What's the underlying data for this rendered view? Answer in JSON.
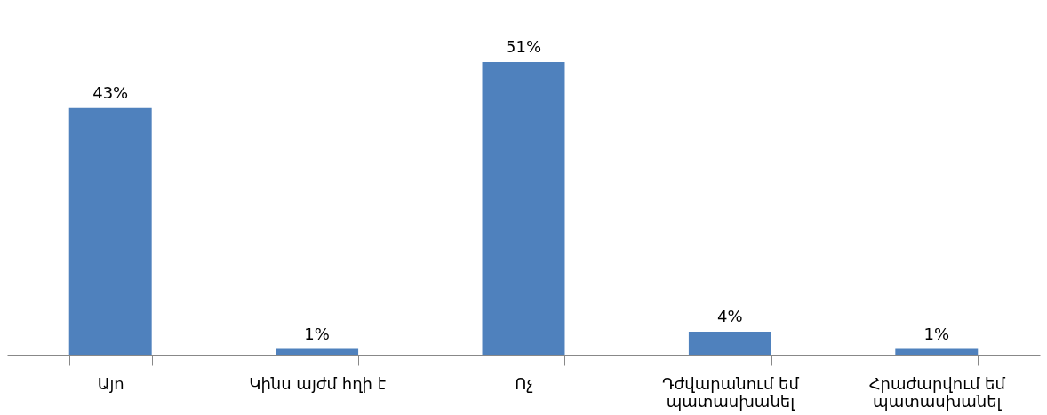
{
  "chart_data": {
    "type": "bar",
    "categories": [
      "Այո",
      "Կինս այժմ հղի է",
      "Ոչ",
      "Դժվարանում եմ պատասխանել",
      "Հրաժարվում եմ պատասխանել"
    ],
    "values": [
      43,
      1,
      51,
      4,
      1
    ],
    "value_labels": [
      "43%",
      "1%",
      "51%",
      "4%",
      "1%"
    ],
    "color": "#4f81bd"
  }
}
